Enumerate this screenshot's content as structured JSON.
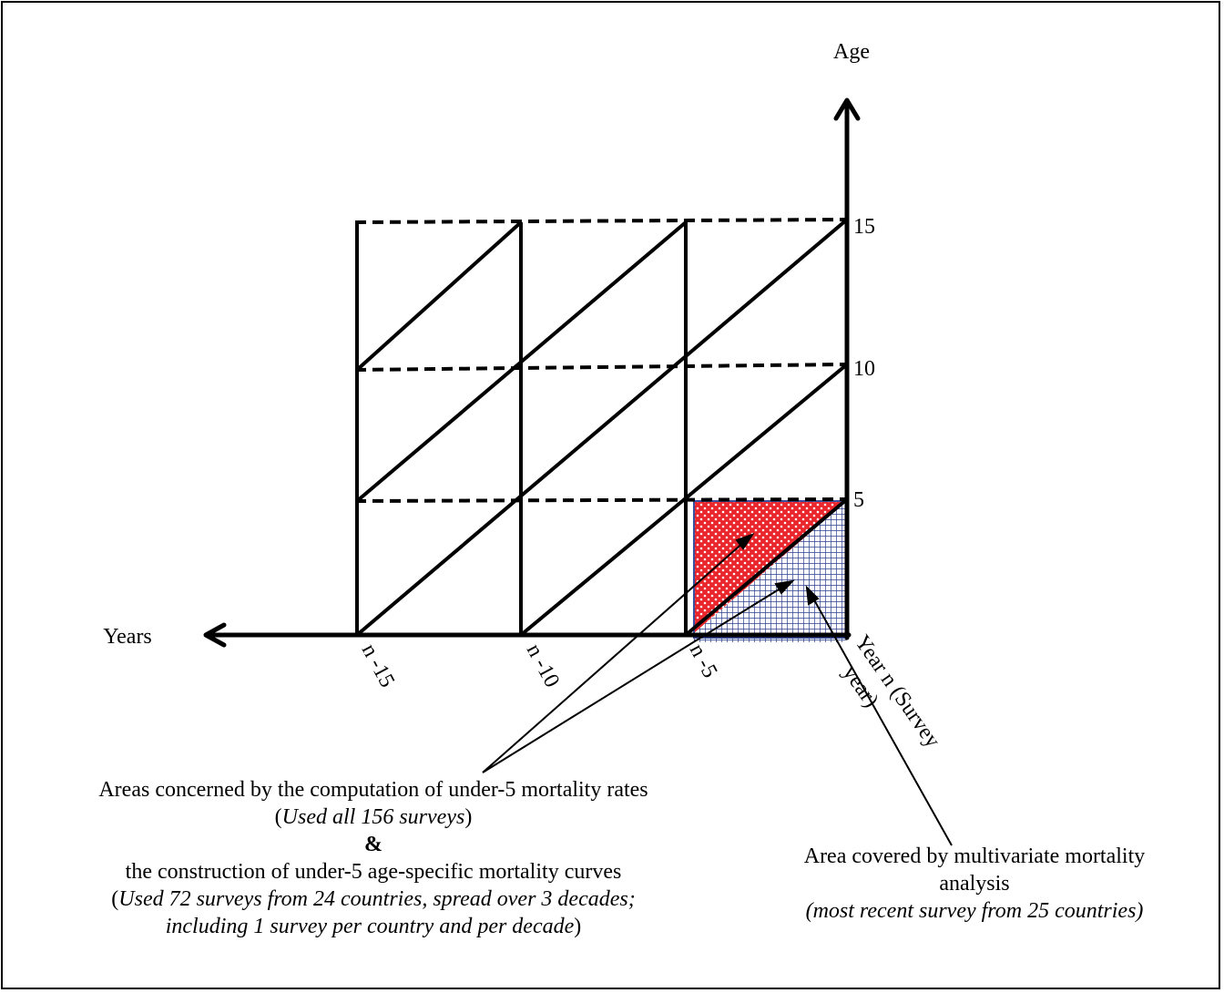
{
  "axes": {
    "y_label": "Age",
    "x_label": "Years",
    "y_ticks": [
      "15",
      "10",
      "5"
    ],
    "x_ticks": [
      "n -15",
      "n -10",
      "n -5"
    ],
    "survey_year_label": "Year n (Survey year)"
  },
  "left_note": {
    "line1": "Areas concerned by the computation of under-5 mortality rates",
    "line2_open": "(",
    "line2_italic": "Used all 156 surveys",
    "line2_close": ")",
    "amp": "&",
    "line3": "the construction of under-5 age-specific mortality curves",
    "line4_open": "(",
    "line4_italic": "Used 72 surveys from 24 countries, spread over 3 decades;",
    "line5_italic": "including 1 survey per country and per decade",
    "line5_close": ")"
  },
  "right_note": {
    "line1": "Area covered by multivariate mortality",
    "line2": "analysis",
    "line3": "(most recent survey from 25 countries)"
  },
  "colors": {
    "upper_triangle_fill": "#e8262b",
    "lower_triangle_fill": "#2b3f8f",
    "lines": "#000000"
  }
}
